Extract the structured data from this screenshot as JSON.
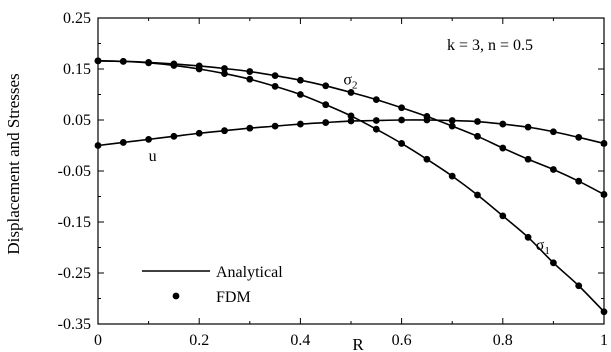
{
  "chart_data": {
    "type": "line",
    "xlabel": "R",
    "ylabel": "Displacement and Stresses",
    "xlim": [
      0,
      1
    ],
    "ylim": [
      -0.35,
      0.25
    ],
    "xticks": [
      "0",
      "0.2",
      "0.4",
      "0.6",
      "0.8",
      "1"
    ],
    "yticks": [
      "0.25",
      "0.15",
      "0.05",
      "-0.05",
      "-0.15",
      "-0.25",
      "-0.35"
    ],
    "grid": false,
    "params_label": "k = 3, n = 0.5",
    "legend": {
      "position": "bottom-left",
      "line_label": "Analytical",
      "marker_label": "FDM"
    },
    "series": [
      {
        "name": "u",
        "label_main": "u",
        "label_sub": "",
        "x": [
          0,
          0.05,
          0.1,
          0.15,
          0.2,
          0.25,
          0.3,
          0.35,
          0.4,
          0.45,
          0.5,
          0.55,
          0.6,
          0.65,
          0.7,
          0.75,
          0.8,
          0.85,
          0.9,
          0.95,
          1.0
        ],
        "y": [
          0.0,
          0.006,
          0.012,
          0.018,
          0.024,
          0.029,
          0.034,
          0.038,
          0.042,
          0.045,
          0.048,
          0.049,
          0.05,
          0.05,
          0.049,
          0.047,
          0.042,
          0.036,
          0.027,
          0.016,
          0.004
        ]
      },
      {
        "name": "σ2",
        "label_main": "σ",
        "label_sub": "2",
        "x": [
          0,
          0.05,
          0.1,
          0.15,
          0.2,
          0.25,
          0.3,
          0.35,
          0.4,
          0.45,
          0.5,
          0.55,
          0.6,
          0.65,
          0.7,
          0.75,
          0.8,
          0.85,
          0.9,
          0.95,
          1.0
        ],
        "y": [
          0.166,
          0.165,
          0.163,
          0.16,
          0.156,
          0.151,
          0.145,
          0.137,
          0.128,
          0.117,
          0.104,
          0.09,
          0.074,
          0.057,
          0.038,
          0.018,
          -0.005,
          -0.027,
          -0.047,
          -0.07,
          -0.096
        ]
      },
      {
        "name": "σ1",
        "label_main": "σ",
        "label_sub": "1",
        "x": [
          0,
          0.05,
          0.1,
          0.15,
          0.2,
          0.25,
          0.3,
          0.35,
          0.4,
          0.45,
          0.5,
          0.55,
          0.6,
          0.65,
          0.7,
          0.75,
          0.8,
          0.85,
          0.9,
          0.95,
          1.0
        ],
        "y": [
          0.166,
          0.165,
          0.162,
          0.157,
          0.15,
          0.141,
          0.13,
          0.116,
          0.1,
          0.08,
          0.058,
          0.032,
          0.004,
          -0.027,
          -0.06,
          -0.097,
          -0.138,
          -0.18,
          -0.23,
          -0.275,
          -0.326
        ]
      }
    ]
  }
}
